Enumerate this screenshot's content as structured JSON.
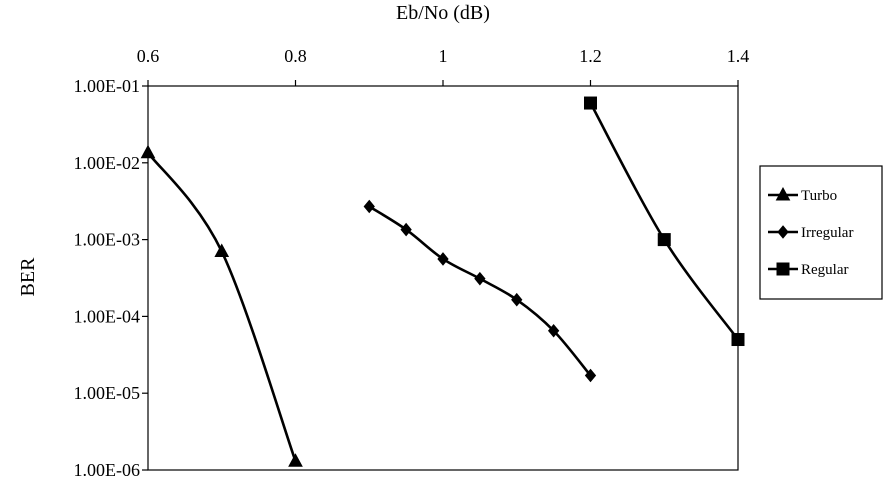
{
  "chart_data": {
    "type": "line",
    "xlabel": "Eb/No (dB)",
    "ylabel": "BER",
    "x_axis_position": "top",
    "xlim": [
      0.6,
      1.4
    ],
    "xticks": [
      0.6,
      0.8,
      1,
      1.2,
      1.4
    ],
    "xtick_labels": [
      "0.6",
      "0.8",
      "1",
      "1.2",
      "1.4"
    ],
    "y_scale": "log",
    "ylim": [
      1e-06,
      0.1
    ],
    "yticks": [
      0.1,
      0.01,
      0.001,
      0.0001,
      1e-05,
      1e-06
    ],
    "ytick_labels": [
      "1.00E-01",
      "1.00E-02",
      "1.00E-03",
      "1.00E-04",
      "1.00E-05",
      "1.00E-06"
    ],
    "grid": false,
    "legend_position": "right",
    "series": [
      {
        "name": "Turbo",
        "marker": "triangle",
        "color": "#000000",
        "x": [
          0.6,
          0.7,
          0.8
        ],
        "y": [
          0.0135,
          0.0007,
          1.3e-06
        ]
      },
      {
        "name": "Irregular",
        "marker": "diamond",
        "color": "#000000",
        "x": [
          0.9,
          0.95,
          1.0,
          1.05,
          1.1,
          1.15,
          1.2
        ],
        "y": [
          0.0027,
          0.00135,
          0.00056,
          0.00031,
          0.000165,
          6.5e-05,
          1.7e-05
        ]
      },
      {
        "name": "Regular",
        "marker": "square",
        "color": "#000000",
        "x": [
          1.2,
          1.3,
          1.4
        ],
        "y": [
          0.06,
          0.001,
          5e-05
        ]
      }
    ]
  }
}
